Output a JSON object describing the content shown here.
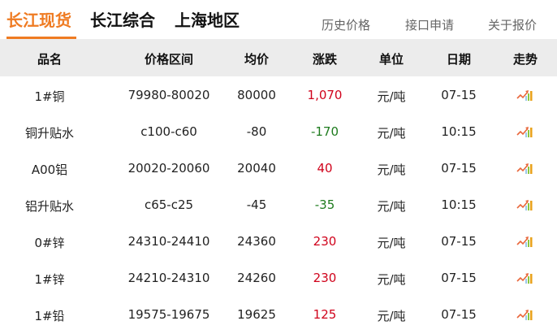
{
  "tabs": [
    "长江现货",
    "长江综合",
    "上海地区"
  ],
  "links": [
    "历史价格",
    "接口申请",
    "关于报价"
  ],
  "columns": [
    "品名",
    "价格区间",
    "均价",
    "涨跌",
    "单位",
    "日期",
    "走势"
  ],
  "colors": {
    "accent": "#ef7b22",
    "up": "#d0021b",
    "down": "#1e7b1e"
  },
  "rows": [
    {
      "name": "1#铜",
      "range": "79980-80020",
      "avg": "80000",
      "change": "1,070",
      "dir": "up",
      "unit": "元/吨",
      "date": "07-15",
      "trend": "trend-up-icon"
    },
    {
      "name": "铜升贴水",
      "range": "c100-c60",
      "avg": "-80",
      "change": "-170",
      "dir": "down",
      "unit": "元/吨",
      "date": "10:15",
      "trend": "trend-up-icon"
    },
    {
      "name": "A00铝",
      "range": "20020-20060",
      "avg": "20040",
      "change": "40",
      "dir": "up",
      "unit": "元/吨",
      "date": "07-15",
      "trend": "trend-up-icon"
    },
    {
      "name": "铝升贴水",
      "range": "c65-c25",
      "avg": "-45",
      "change": "-35",
      "dir": "down",
      "unit": "元/吨",
      "date": "10:15",
      "trend": "trend-up-icon"
    },
    {
      "name": "0#锌",
      "range": "24310-24410",
      "avg": "24360",
      "change": "230",
      "dir": "up",
      "unit": "元/吨",
      "date": "07-15",
      "trend": "trend-up-icon"
    },
    {
      "name": "1#锌",
      "range": "24210-24310",
      "avg": "24260",
      "change": "230",
      "dir": "up",
      "unit": "元/吨",
      "date": "07-15",
      "trend": "trend-up-icon"
    },
    {
      "name": "1#铅",
      "range": "19575-19675",
      "avg": "19625",
      "change": "125",
      "dir": "up",
      "unit": "元/吨",
      "date": "07-15",
      "trend": "trend-up-icon"
    }
  ]
}
